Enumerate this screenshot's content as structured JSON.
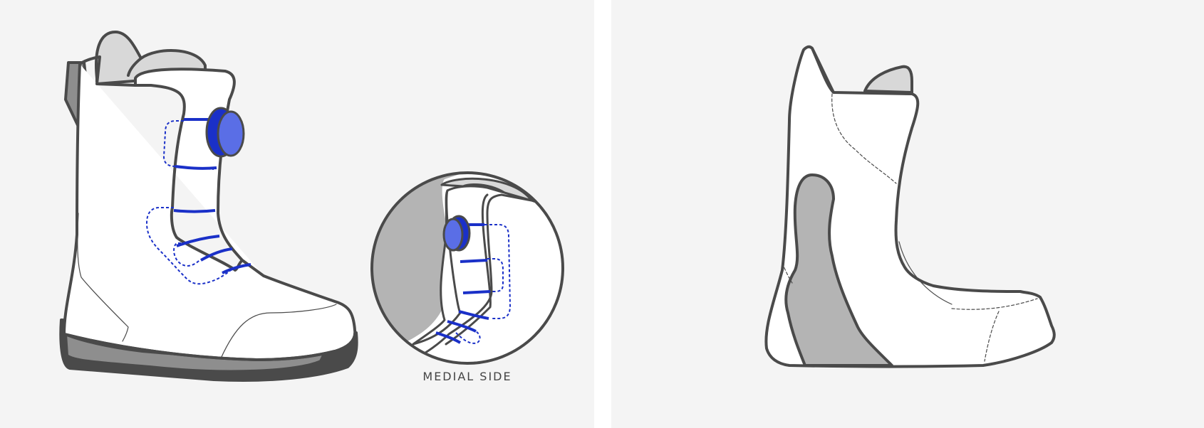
{
  "inset": {
    "caption": "MEDIAL SIDE"
  },
  "colors": {
    "background": "#f4f4f4",
    "outline": "#4a4a4a",
    "boot_fill": "#ffffff",
    "tongue_fill": "#d8d8d8",
    "sole_fill": "#8e8e8e",
    "sole_dark": "#4a4a4a",
    "inset_shade": "#b4b4b4",
    "lace": "#1a30c8",
    "dial": "#5a6ee6"
  },
  "icons": {
    "left": "snowboard-boot-outer-shell-with-dial-lacing",
    "inset": "medial-side-zoom-circle",
    "right": "snowboard-boot-inner-liner"
  }
}
